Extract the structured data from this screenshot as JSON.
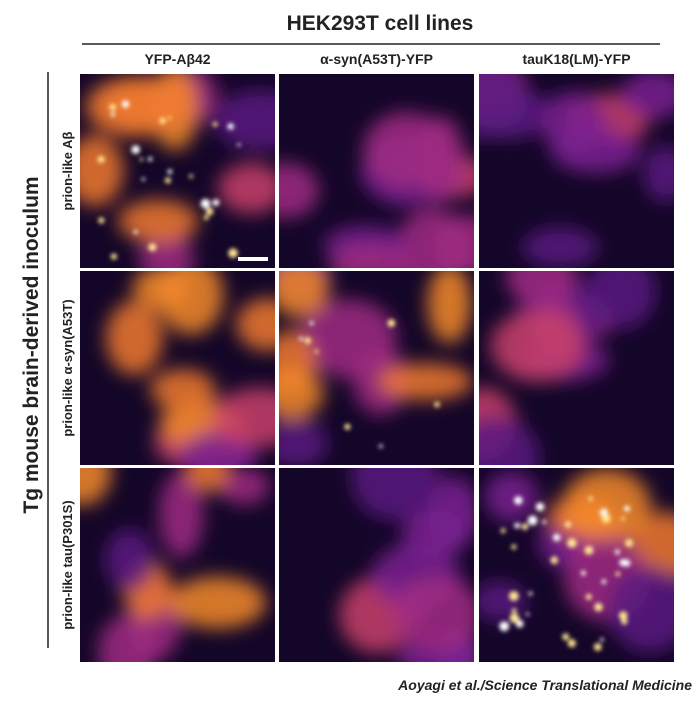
{
  "header": {
    "title": "HEK293T cell lines",
    "columns": [
      "YFP-Aβ42",
      "α-syn(A53T)-YFP",
      "tauK18(LM)-YFP"
    ]
  },
  "rows": {
    "title": "Tg mouse brain-derived inoculum",
    "labels": [
      "prion-like Aβ",
      "prion-like α-syn(A53T)",
      "prion-like tau(P301S)"
    ]
  },
  "credit": "Aoyagi et al./Science Translational Medicine"
}
